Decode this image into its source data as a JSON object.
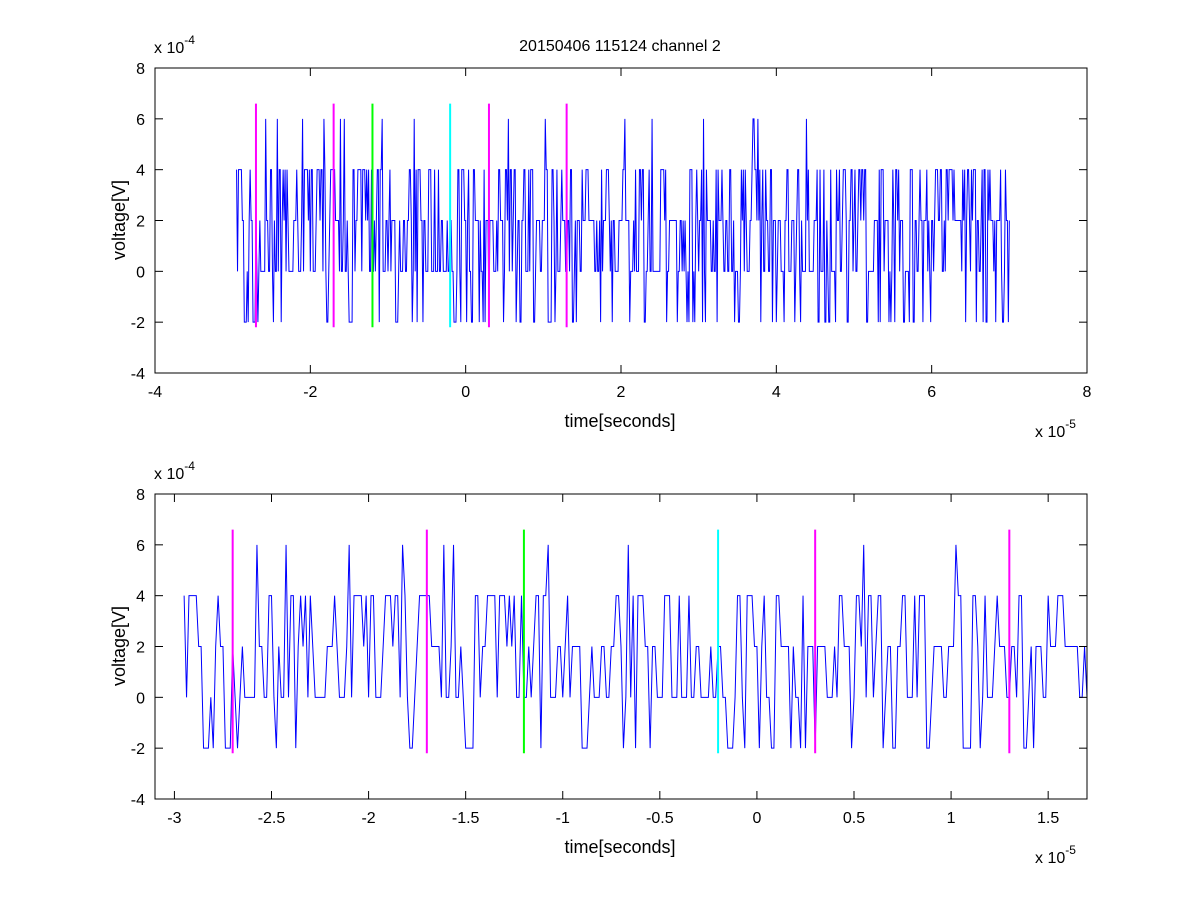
{
  "colors": {
    "signal": "#0000ff",
    "magenta": "#ff00ff",
    "green": "#00ff00",
    "cyan": "#00ffff",
    "axes": "#000000",
    "background": "#ffffff"
  },
  "chart_data": [
    {
      "type": "line",
      "title": "20150406 115124 channel 2",
      "xlabel": "time[seconds]",
      "ylabel": "voltage[V]",
      "x_exponent_label": "x 10",
      "x_exponent_power": "-5",
      "y_exponent_label": "x 10",
      "y_exponent_power": "-4",
      "xlim": [
        -4,
        8
      ],
      "ylim": [
        -4,
        8
      ],
      "xticks": [
        -4,
        -2,
        0,
        2,
        4,
        6,
        8
      ],
      "yticks": [
        -4,
        -2,
        0,
        2,
        4,
        6,
        8
      ],
      "xtick_labels": [
        "-4",
        "-2",
        "0",
        "2",
        "4",
        "6",
        "8"
      ],
      "ytick_labels": [
        "-4",
        "-2",
        "0",
        "2",
        "4",
        "6",
        "8"
      ],
      "grid": false,
      "signal_range": [
        -2.95,
        7.0
      ],
      "signal_step": 0.0125,
      "signal_levels": [
        -2,
        0,
        2,
        4,
        6
      ],
      "markers": [
        {
          "x": -2.7,
          "ymin": -2.2,
          "ymax": 6.6,
          "color": "magenta"
        },
        {
          "x": -1.7,
          "ymin": -2.2,
          "ymax": 6.6,
          "color": "magenta"
        },
        {
          "x": -1.2,
          "ymin": -2.2,
          "ymax": 6.6,
          "color": "green"
        },
        {
          "x": -0.2,
          "ymin": -2.2,
          "ymax": 6.6,
          "color": "cyan"
        },
        {
          "x": 0.3,
          "ymin": -2.2,
          "ymax": 6.6,
          "color": "magenta"
        },
        {
          "x": 1.3,
          "ymin": -2.2,
          "ymax": 6.6,
          "color": "magenta"
        }
      ]
    },
    {
      "type": "line",
      "title": "",
      "xlabel": "time[seconds]",
      "ylabel": "voltage[V]",
      "x_exponent_label": "x 10",
      "x_exponent_power": "-5",
      "y_exponent_label": "x 10",
      "y_exponent_power": "-4",
      "xlim": [
        -3.1,
        1.7
      ],
      "ylim": [
        -4,
        8
      ],
      "xticks": [
        -3,
        -2.5,
        -2,
        -1.5,
        -1,
        -0.5,
        0,
        0.5,
        1,
        1.5
      ],
      "yticks": [
        -4,
        -2,
        0,
        2,
        4,
        6,
        8
      ],
      "xtick_labels": [
        "-3",
        "-2.5",
        "-2",
        "-1.5",
        "-1",
        "-0.5",
        "0",
        "0.5",
        "1",
        "1.5"
      ],
      "ytick_labels": [
        "-4",
        "-2",
        "0",
        "2",
        "4",
        "6",
        "8"
      ],
      "grid": false,
      "signal_range": [
        -2.95,
        1.7
      ],
      "signal_step": 0.0125,
      "signal_levels": [
        -2,
        0,
        2,
        4,
        6
      ],
      "markers": [
        {
          "x": -2.7,
          "ymin": -2.2,
          "ymax": 6.6,
          "color": "magenta"
        },
        {
          "x": -1.7,
          "ymin": -2.2,
          "ymax": 6.6,
          "color": "magenta"
        },
        {
          "x": -1.2,
          "ymin": -2.2,
          "ymax": 6.6,
          "color": "green"
        },
        {
          "x": -0.2,
          "ymin": -2.2,
          "ymax": 6.6,
          "color": "cyan"
        },
        {
          "x": 0.3,
          "ymin": -2.2,
          "ymax": 6.6,
          "color": "magenta"
        },
        {
          "x": 1.3,
          "ymin": -2.2,
          "ymax": 6.6,
          "color": "magenta"
        }
      ]
    }
  ]
}
